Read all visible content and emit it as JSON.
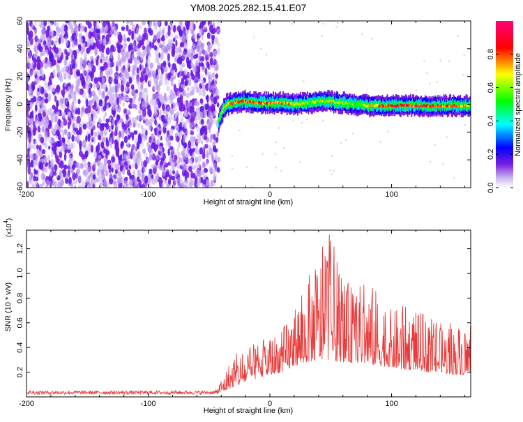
{
  "title": "YM08.2025.282.15.41.E07",
  "chart_data": [
    {
      "type": "heatmap",
      "xlabel": "Height of straight line (km)",
      "ylabel": "Frequency (Hz)",
      "xlim": [
        -200,
        165
      ],
      "ylim": [
        -60,
        60
      ],
      "x_ticks": [
        -200,
        -100,
        0,
        100
      ],
      "y_ticks": [
        -60,
        -40,
        -20,
        0,
        20,
        40,
        60
      ],
      "colorbar": {
        "label": "Normalized spectral amplitude",
        "range": [
          0,
          1
        ],
        "ticks": [
          "0.0",
          "0.2",
          "0.4",
          "0.6",
          "0.8"
        ],
        "tick_values": [
          0.0,
          0.2,
          0.4,
          0.6,
          0.8
        ],
        "colors": [
          "#ffffff",
          "#c9b3f0",
          "#7a1de0",
          "#0000ff",
          "#00ffff",
          "#00ff00",
          "#ffff00",
          "#ff0000",
          "#ff007a"
        ]
      },
      "noise_region": {
        "x_range": [
          -200,
          -42
        ],
        "amplitude": 0.15
      },
      "signal_ridge": {
        "x": [
          -42,
          -38,
          -35,
          -30,
          -25,
          -20,
          -10,
          0,
          10,
          20,
          30,
          40,
          50,
          60,
          70,
          80,
          90,
          100,
          110,
          120,
          130,
          140,
          150,
          160,
          165
        ],
        "frequency": [
          -12,
          -3,
          0,
          1,
          2,
          2,
          1,
          1,
          1,
          0,
          1,
          2,
          2,
          1,
          0,
          -1,
          -1,
          -1,
          -1,
          -1,
          -1,
          -1,
          -1,
          -1,
          -1
        ],
        "peak_amplitude": [
          0.5,
          0.6,
          0.7,
          0.8,
          0.85,
          0.9,
          0.85,
          0.8,
          0.85,
          0.7,
          0.6,
          0.65,
          0.7,
          0.6,
          0.6,
          0.7,
          0.85,
          0.9,
          0.9,
          0.9,
          0.9,
          0.85,
          0.8,
          0.75,
          0.7
        ]
      }
    },
    {
      "type": "line",
      "xlabel": "Height of straight line (km)",
      "ylabel": "SNR (10 * v/v)",
      "multiplier": "(x10",
      "multiplier_exp": "4",
      "multiplier_close": ")",
      "xlim": [
        -200,
        165
      ],
      "ylim": [
        0,
        1.35
      ],
      "x_ticks": [
        -200,
        -100,
        0,
        100
      ],
      "y_ticks": [
        0.2,
        0.4,
        0.6,
        0.8,
        1.0,
        1.2
      ],
      "y_tick_labels": [
        "0.2",
        "0.4",
        "0.6",
        "0.8",
        "1.0",
        "1.2"
      ],
      "series": [
        {
          "color": "#e83b3b",
          "envelope": {
            "x": [
              -200,
              -100,
              -45,
              -30,
              -20,
              -10,
              0,
              10,
              20,
              30,
              40,
              50,
              60,
              70,
              80,
              90,
              100,
              110,
              120,
              130,
              140,
              150,
              160,
              165
            ],
            "baseline": [
              0.02,
              0.02,
              0.02,
              0.08,
              0.12,
              0.15,
              0.18,
              0.2,
              0.25,
              0.28,
              0.3,
              0.3,
              0.28,
              0.28,
              0.27,
              0.25,
              0.24,
              0.22,
              0.22,
              0.2,
              0.2,
              0.18,
              0.18,
              0.18
            ],
            "max": [
              0.05,
              0.05,
              0.05,
              0.35,
              0.38,
              0.45,
              0.5,
              0.55,
              0.75,
              0.95,
              1.15,
              1.35,
              0.95,
              0.9,
              0.95,
              0.85,
              0.7,
              0.75,
              0.7,
              0.65,
              0.6,
              0.6,
              0.6,
              0.58
            ]
          }
        }
      ]
    }
  ]
}
